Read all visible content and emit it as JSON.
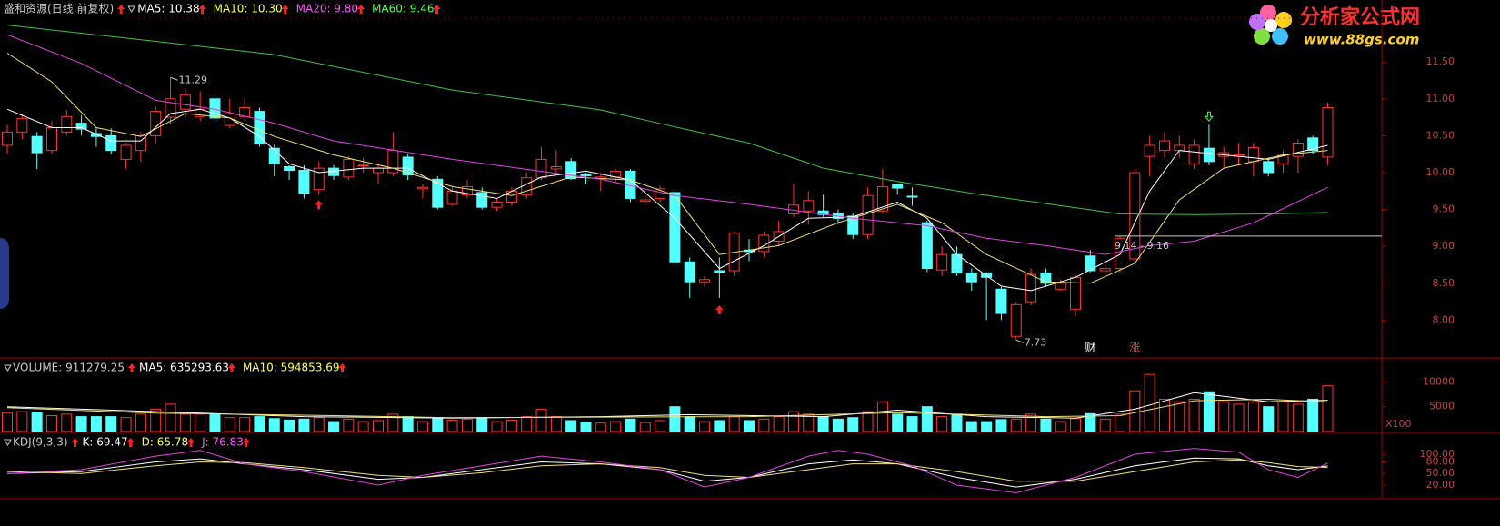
{
  "chart_data": [
    {
      "type": "candlestick",
      "title": "盛和资源(日线,前复权)",
      "title_color": "#c8c8c8",
      "legend": [
        {
          "label": "MA5: 10.38",
          "color": "#ffffff"
        },
        {
          "label": "MA10: 10.30",
          "color": "#ffff54"
        },
        {
          "label": "MA20: 9.80",
          "color": "#ff54ff"
        },
        {
          "label": "MA60: 9.46",
          "color": "#54ff54"
        }
      ],
      "up_color": "#ff3232",
      "down_color": "#54ffff",
      "open": [
        10.37,
        10.55,
        10.49,
        10.3,
        10.55,
        10.67,
        10.53,
        10.5,
        10.18,
        10.3,
        10.5,
        10.75,
        10.86,
        10.76,
        11.0,
        10.64,
        10.76,
        10.83,
        10.33,
        10.08,
        10.03,
        9.77,
        10.06,
        9.94,
        10.09,
        10.0,
        10.0,
        10.21,
        9.78,
        9.91,
        9.57,
        9.7,
        9.73,
        9.53,
        9.6,
        9.7,
        9.93,
        10.05,
        10.15,
        9.97,
        9.92,
        9.94,
        10.02,
        9.61,
        9.65,
        9.73,
        8.79,
        8.52,
        8.67,
        8.67,
        8.95,
        8.93,
        9.07,
        9.44,
        9.48,
        9.48,
        9.44,
        9.41,
        9.16,
        9.48,
        9.84,
        9.68,
        9.32,
        8.68,
        8.89,
        8.64,
        8.64,
        8.42,
        7.78,
        8.25,
        8.64,
        8.42,
        8.15,
        8.87,
        8.67,
        8.7,
        8.83,
        10.22,
        10.3,
        10.3,
        10.12,
        10.33,
        10.22,
        10.22,
        10.15,
        10.15,
        10.12,
        10.22,
        10.47,
        10.21
      ],
      "high": [
        10.65,
        10.8,
        10.55,
        10.7,
        10.85,
        10.78,
        10.6,
        10.6,
        10.4,
        10.55,
        10.9,
        11.29,
        11.15,
        11.1,
        11.05,
        11.0,
        11.0,
        10.88,
        10.38,
        10.1,
        10.1,
        10.15,
        10.1,
        10.22,
        10.2,
        10.12,
        10.55,
        10.25,
        9.85,
        9.95,
        9.8,
        9.9,
        9.8,
        9.65,
        9.8,
        10.0,
        10.35,
        10.3,
        10.2,
        10.0,
        10.0,
        10.05,
        10.05,
        9.7,
        9.82,
        9.75,
        8.85,
        8.6,
        8.85,
        9.2,
        9.1,
        9.2,
        9.35,
        9.85,
        9.75,
        9.7,
        9.5,
        9.45,
        9.8,
        10.05,
        9.85,
        9.8,
        9.35,
        9.0,
        9.0,
        8.7,
        8.65,
        8.45,
        8.25,
        8.7,
        8.7,
        8.55,
        8.62,
        8.95,
        8.8,
        9.14,
        10.05,
        10.5,
        10.55,
        10.5,
        10.45,
        10.65,
        10.35,
        10.4,
        10.4,
        10.2,
        10.3,
        10.45,
        10.5,
        10.95
      ],
      "low": [
        10.25,
        10.45,
        10.05,
        10.25,
        10.5,
        10.5,
        10.35,
        10.25,
        10.05,
        10.15,
        10.4,
        10.65,
        10.75,
        10.7,
        10.7,
        10.6,
        10.7,
        10.35,
        9.95,
        9.9,
        9.65,
        9.7,
        9.9,
        9.9,
        10.0,
        9.85,
        9.95,
        9.9,
        9.65,
        9.5,
        9.55,
        9.65,
        9.5,
        9.48,
        9.55,
        9.65,
        9.9,
        10.0,
        9.9,
        9.85,
        9.75,
        9.85,
        9.6,
        9.55,
        9.6,
        8.75,
        8.3,
        8.45,
        8.3,
        8.6,
        8.8,
        8.85,
        9.0,
        9.4,
        9.3,
        9.4,
        9.3,
        9.1,
        9.1,
        9.45,
        9.7,
        9.55,
        8.65,
        8.6,
        8.6,
        8.4,
        8.0,
        8.0,
        7.73,
        8.2,
        8.45,
        8.4,
        8.05,
        8.65,
        8.6,
        8.65,
        8.8,
        9.95,
        10.2,
        10.2,
        10.05,
        10.1,
        10.05,
        10.1,
        9.95,
        9.95,
        10.0,
        10.0,
        10.25,
        10.1
      ],
      "close": [
        10.55,
        10.73,
        10.27,
        10.61,
        10.76,
        10.59,
        10.49,
        10.3,
        10.37,
        10.5,
        10.83,
        11.0,
        11.05,
        10.86,
        10.74,
        10.8,
        10.88,
        10.39,
        10.12,
        10.03,
        9.72,
        10.06,
        9.96,
        10.18,
        10.1,
        10.06,
        10.3,
        9.97,
        9.8,
        9.53,
        9.75,
        9.81,
        9.53,
        9.6,
        9.75,
        9.93,
        10.18,
        10.08,
        9.92,
        9.96,
        9.94,
        10.02,
        9.65,
        9.63,
        9.78,
        8.79,
        8.52,
        8.55,
        8.65,
        9.18,
        8.93,
        9.15,
        9.2,
        9.56,
        9.62,
        9.43,
        9.38,
        9.16,
        9.69,
        9.81,
        9.79,
        9.67,
        8.7,
        8.89,
        8.64,
        8.52,
        8.58,
        8.09,
        8.21,
        8.62,
        8.5,
        8.5,
        8.58,
        8.67,
        8.7,
        9.11,
        10.0,
        10.37,
        10.43,
        10.37,
        10.37,
        10.15,
        10.27,
        10.24,
        10.34,
        10.0,
        10.25,
        10.4,
        10.3,
        10.88
      ],
      "lines": [
        {
          "name": "MA5",
          "color": "#ffffff",
          "x": [
            0,
            3,
            5,
            7,
            9,
            11,
            13,
            15,
            17,
            19,
            21,
            24,
            27,
            30,
            33,
            36,
            39,
            42,
            45,
            48,
            51,
            54,
            57,
            60,
            62,
            64,
            67,
            69,
            72,
            75,
            77,
            79,
            82,
            85,
            89
          ],
          "values": [
            10.86,
            10.61,
            10.61,
            10.43,
            10.43,
            10.8,
            10.86,
            10.74,
            10.49,
            10.12,
            10.0,
            10.06,
            10.06,
            9.75,
            9.65,
            9.94,
            10.02,
            9.9,
            9.38,
            8.7,
            9.01,
            9.38,
            9.4,
            9.6,
            9.38,
            8.89,
            8.46,
            8.4,
            8.58,
            8.89,
            9.75,
            10.3,
            10.24,
            10.18,
            10.37
          ]
        },
        {
          "name": "MA10",
          "color": "#f0e070",
          "x": [
            0,
            3,
            6,
            9,
            12,
            15,
            18,
            22,
            26,
            30,
            34,
            38,
            42,
            45,
            48,
            52,
            56,
            60,
            63,
            66,
            70,
            73,
            76,
            79,
            82,
            86,
            89
          ],
          "values": [
            11.62,
            11.23,
            10.61,
            10.49,
            10.8,
            10.74,
            10.49,
            10.24,
            10.06,
            9.81,
            9.69,
            9.94,
            9.9,
            9.69,
            8.89,
            9.01,
            9.32,
            9.57,
            9.32,
            8.89,
            8.52,
            8.5,
            8.77,
            9.63,
            10.06,
            10.24,
            10.3
          ]
        },
        {
          "name": "MA20",
          "color": "#e040e0",
          "x": [
            0,
            5,
            10,
            14,
            18,
            22,
            30,
            40,
            45,
            50,
            57,
            62,
            66,
            70,
            74,
            77,
            80,
            84,
            89
          ],
          "values": [
            11.87,
            11.48,
            10.98,
            10.86,
            10.67,
            10.43,
            10.18,
            9.91,
            9.69,
            9.57,
            9.38,
            9.28,
            9.11,
            9.01,
            8.89,
            9.01,
            9.07,
            9.32,
            9.8
          ]
        },
        {
          "name": "MA60",
          "color": "#40c040",
          "x": [
            0,
            10,
            18,
            30,
            40,
            45,
            50,
            55,
            60,
            65,
            70,
            75,
            80,
            85,
            89
          ],
          "values": [
            12.0,
            11.78,
            11.6,
            11.12,
            10.85,
            10.62,
            10.4,
            10.06,
            9.88,
            9.72,
            9.58,
            9.44,
            9.43,
            9.44,
            9.46
          ]
        }
      ],
      "ylim": [
        7.5,
        12.34
      ],
      "yticks": [
        {
          "value": 11.5,
          "label": "11.50"
        },
        {
          "value": 11.0,
          "label": "11.00"
        },
        {
          "value": 10.5,
          "label": "10.50"
        },
        {
          "value": 10.0,
          "label": "10.00"
        },
        {
          "value": 9.5,
          "label": "9.50"
        },
        {
          "value": 9.0,
          "label": "9.00"
        },
        {
          "value": 8.5,
          "label": "8.50"
        },
        {
          "value": 8.0,
          "label": "8.00"
        }
      ],
      "annotations": [
        {
          "text": "11.29",
          "x": 11,
          "y": 11.29,
          "color": "#c8c8c8"
        },
        {
          "text": "7.73",
          "x": 68,
          "y": 7.73,
          "color": "#c8c8c8"
        },
        {
          "text": "9.14 - 9.16",
          "x": 75,
          "y": 9.14,
          "color": "#c8c8c8"
        },
        {
          "text": "财",
          "x": 73,
          "color": "#ffffff"
        },
        {
          "text": "涨",
          "x": 76,
          "color": "#ff3232"
        }
      ]
    },
    {
      "type": "bar",
      "title": "VOLUME: 911279.25",
      "title_color": "#c8c8c8",
      "legend": [
        {
          "label": "MA5: 635293.63",
          "color": "#ffffff"
        },
        {
          "label": "MA10: 594853.69",
          "color": "#ffff54"
        }
      ],
      "values": [
        3800,
        4000,
        3800,
        3200,
        3500,
        3000,
        3000,
        3000,
        2800,
        3500,
        4500,
        5500,
        3500,
        3500,
        3400,
        2800,
        2800,
        3000,
        2600,
        2300,
        2500,
        2800,
        2000,
        2500,
        2000,
        2200,
        3500,
        3000,
        2000,
        2800,
        2300,
        2500,
        2800,
        2000,
        2300,
        3000,
        4500,
        3000,
        2200,
        1900,
        1700,
        2000,
        2500,
        1800,
        2200,
        5000,
        3000,
        2000,
        2200,
        3000,
        2200,
        2500,
        3000,
        4000,
        3500,
        3000,
        2500,
        2800,
        4000,
        6000,
        3500,
        3000,
        5000,
        3000,
        3500,
        2000,
        2000,
        2400,
        2500,
        3500,
        2500,
        2000,
        2600,
        3600,
        2500,
        3500,
        8200,
        11500,
        6500,
        6000,
        6500,
        8000,
        6000,
        5500,
        6000,
        5000,
        6000,
        5500,
        6500,
        9200
      ],
      "lines": [
        {
          "name": "MA5",
          "color": "#ffffff",
          "x": [
            0,
            10,
            20,
            30,
            40,
            46,
            55,
            60,
            66,
            72,
            76,
            80,
            85,
            89
          ],
          "values": [
            5000,
            4000,
            3000,
            2700,
            3000,
            3400,
            3000,
            4300,
            3000,
            2700,
            4500,
            7800,
            6000,
            6300
          ]
        },
        {
          "name": "MA10",
          "color": "#f0e070",
          "x": [
            0,
            10,
            20,
            30,
            40,
            50,
            60,
            70,
            75,
            80,
            85,
            89
          ],
          "values": [
            4800,
            3700,
            3300,
            2800,
            2900,
            3000,
            3800,
            3000,
            3200,
            6200,
            6500,
            5950
          ]
        }
      ],
      "ylim": [
        0,
        14630
      ],
      "yticks": [
        5000,
        10000
      ],
      "unit_label": "X100"
    },
    {
      "type": "line",
      "title": "KDJ(9,3,3)",
      "title_color": "#c8c8c8",
      "legend": [
        {
          "label": "K: 69.47",
          "color": "#ffffff"
        },
        {
          "label": "D: 65.78",
          "color": "#ffff54"
        },
        {
          "label": "J: 76.83",
          "color": "#ff54ff"
        }
      ],
      "series": [
        {
          "name": "K",
          "color": "#ffffff",
          "x": [
            0,
            5,
            10,
            13,
            16,
            20,
            25,
            28,
            32,
            36,
            40,
            44,
            47,
            50,
            54,
            57,
            60,
            64,
            68,
            72,
            76,
            80,
            83,
            85,
            87,
            89
          ],
          "values": [
            50,
            55,
            80,
            88,
            75,
            60,
            35,
            40,
            60,
            80,
            75,
            60,
            30,
            40,
            75,
            85,
            75,
            40,
            15,
            35,
            70,
            90,
            88,
            70,
            60,
            69.47
          ]
        },
        {
          "name": "D",
          "color": "#f0e070",
          "x": [
            0,
            5,
            10,
            13,
            16,
            20,
            25,
            28,
            32,
            36,
            40,
            44,
            47,
            50,
            54,
            57,
            60,
            64,
            68,
            72,
            76,
            80,
            83,
            85,
            87,
            89
          ],
          "values": [
            55,
            50,
            70,
            80,
            78,
            65,
            45,
            40,
            52,
            70,
            75,
            65,
            45,
            40,
            60,
            75,
            75,
            55,
            30,
            30,
            55,
            80,
            85,
            78,
            68,
            65.78
          ]
        },
        {
          "name": "J",
          "color": "#e040e0",
          "x": [
            0,
            5,
            10,
            13,
            16,
            20,
            25,
            28,
            32,
            36,
            40,
            44,
            47,
            50,
            54,
            56,
            58,
            61,
            64,
            68,
            72,
            76,
            80,
            83,
            85,
            87,
            89
          ],
          "values": [
            50,
            60,
            95,
            110,
            75,
            55,
            20,
            45,
            70,
            95,
            80,
            60,
            15,
            40,
            95,
            110,
            100,
            70,
            20,
            0,
            40,
            100,
            115,
            105,
            60,
            40,
            76.83
          ]
        }
      ],
      "ylim": [
        -13,
        154
      ],
      "yticks": [
        {
          "value": 100,
          "label": "100.00"
        },
        {
          "value": 80,
          "label": "80.00"
        },
        {
          "value": 50,
          "label": "50.00"
        },
        {
          "value": 20,
          "label": "20.00"
        }
      ]
    }
  ],
  "logo": {
    "title": "分析家公式网",
    "url": "www.88gs.com"
  }
}
